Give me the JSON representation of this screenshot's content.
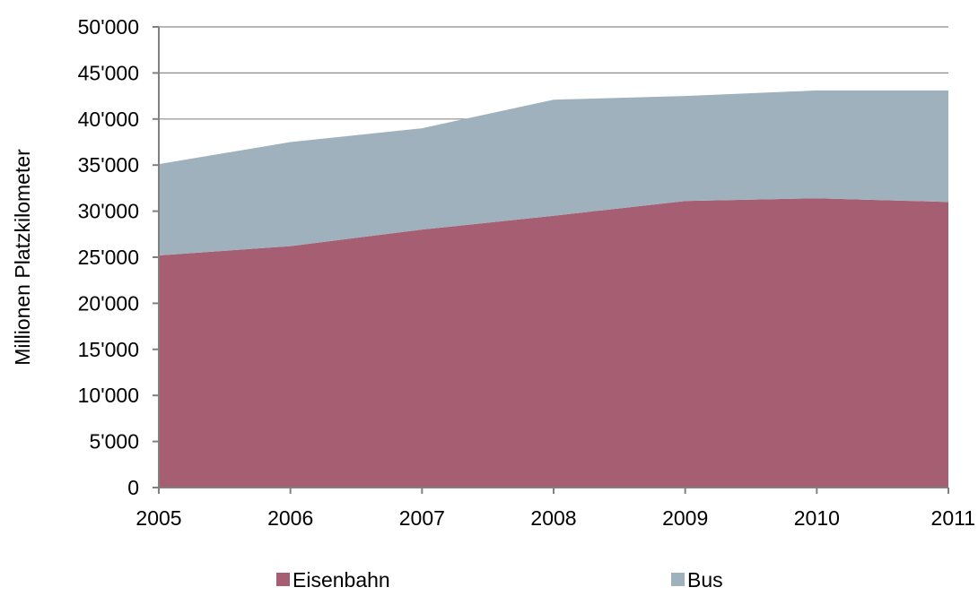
{
  "chart_data": {
    "type": "area",
    "stacked": true,
    "title": "",
    "xlabel": "",
    "ylabel": "Millionen Platzkilometer",
    "x": [
      "2005",
      "2006",
      "2007",
      "2008",
      "2009",
      "2010",
      "2011"
    ],
    "series": [
      {
        "name": "Eisenbahn",
        "color": "#a65e72",
        "values": [
          25200,
          26200,
          28000,
          29500,
          31100,
          31400,
          31000
        ]
      },
      {
        "name": "Bus",
        "color": "#9fb1bd",
        "values": [
          9900,
          11300,
          11000,
          12600,
          11400,
          11700,
          12100
        ]
      }
    ],
    "ylim": [
      0,
      50000
    ],
    "yticks": [
      "0",
      "5'000",
      "10'000",
      "15'000",
      "20'000",
      "25'000",
      "30'000",
      "35'000",
      "40'000",
      "45'000",
      "50'000"
    ],
    "grid": true,
    "legend_position": "bottom"
  }
}
